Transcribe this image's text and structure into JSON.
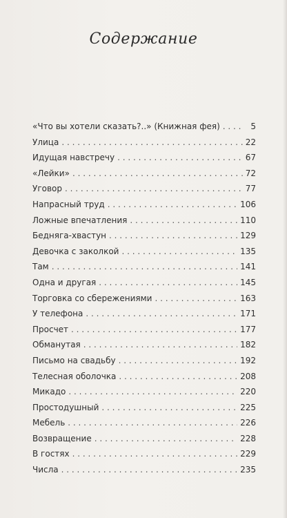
{
  "title": "Содержание",
  "entries": [
    {
      "title": "«Что вы хотели сказать?..» (Книжная фея)",
      "page": "5"
    },
    {
      "title": "Улица",
      "page": "22"
    },
    {
      "title": "Идущая навстречу",
      "page": "67"
    },
    {
      "title": "«Лейки»",
      "page": "72"
    },
    {
      "title": "Уговор",
      "page": "77"
    },
    {
      "title": "Напрасный труд",
      "page": "106"
    },
    {
      "title": "Ложные впечатления",
      "page": "110"
    },
    {
      "title": "Бедняга-хвастун",
      "page": "129"
    },
    {
      "title": "Девочка с заколкой",
      "page": "135"
    },
    {
      "title": "Там",
      "page": "141"
    },
    {
      "title": "Одна и другая",
      "page": "145"
    },
    {
      "title": "Торговка со сбережениями",
      "page": "163"
    },
    {
      "title": "У телефона",
      "page": "171"
    },
    {
      "title": "Просчет",
      "page": "177"
    },
    {
      "title": "Обманутая",
      "page": "182"
    },
    {
      "title": "Письмо на свадьбу",
      "page": "192"
    },
    {
      "title": "Телесная оболочка",
      "page": "208"
    },
    {
      "title": "Микадо",
      "page": "220"
    },
    {
      "title": "Простодушный",
      "page": "225"
    },
    {
      "title": "Мебель",
      "page": "226"
    },
    {
      "title": "Возвращение",
      "page": "228"
    },
    {
      "title": "В гостях",
      "page": "229"
    },
    {
      "title": "Числа",
      "page": "235"
    }
  ]
}
